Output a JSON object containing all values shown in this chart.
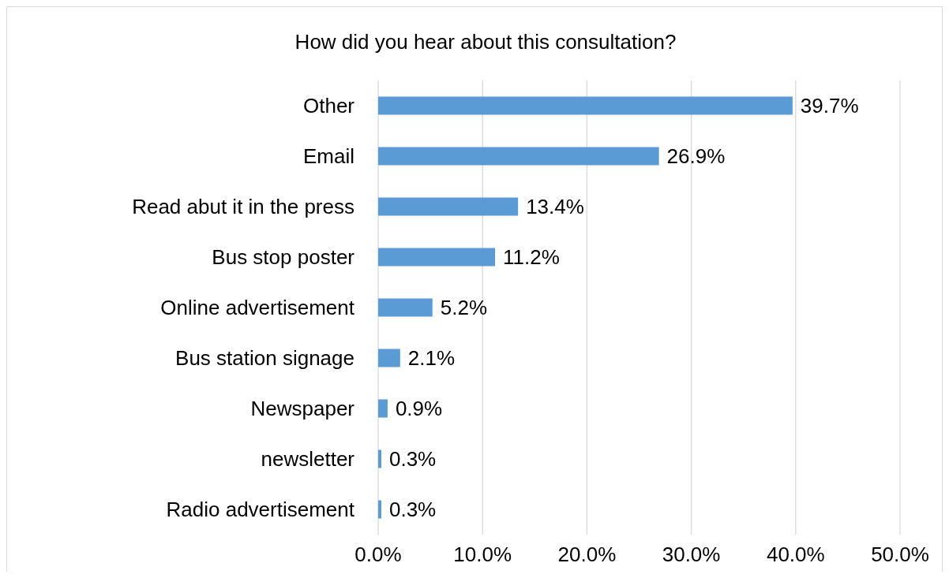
{
  "chart_data": {
    "type": "bar",
    "orientation": "horizontal",
    "title": "How did you hear about this consultation?",
    "categories": [
      "Other",
      "Email",
      "Read abut it in the press",
      "Bus stop poster",
      "Online advertisement",
      "Bus station signage",
      "Newspaper",
      "newsletter",
      "Radio advertisement"
    ],
    "values": [
      39.7,
      26.9,
      13.4,
      11.2,
      5.2,
      2.1,
      0.9,
      0.3,
      0.3
    ],
    "value_labels": [
      "39.7%",
      "26.9%",
      "13.4%",
      "11.2%",
      "5.2%",
      "2.1%",
      "0.9%",
      "0.3%",
      "0.3%"
    ],
    "color": "#5b9bd5",
    "xlim": [
      0,
      50
    ],
    "xticks": [
      {
        "value": 0,
        "label": "0.0%"
      },
      {
        "value": 10,
        "label": "10.0%"
      },
      {
        "value": 20,
        "label": "20.0%"
      },
      {
        "value": 30,
        "label": "30.0%"
      },
      {
        "value": 40,
        "label": "40.0%"
      },
      {
        "value": 50,
        "label": "50.0%"
      }
    ],
    "grid": "x"
  }
}
